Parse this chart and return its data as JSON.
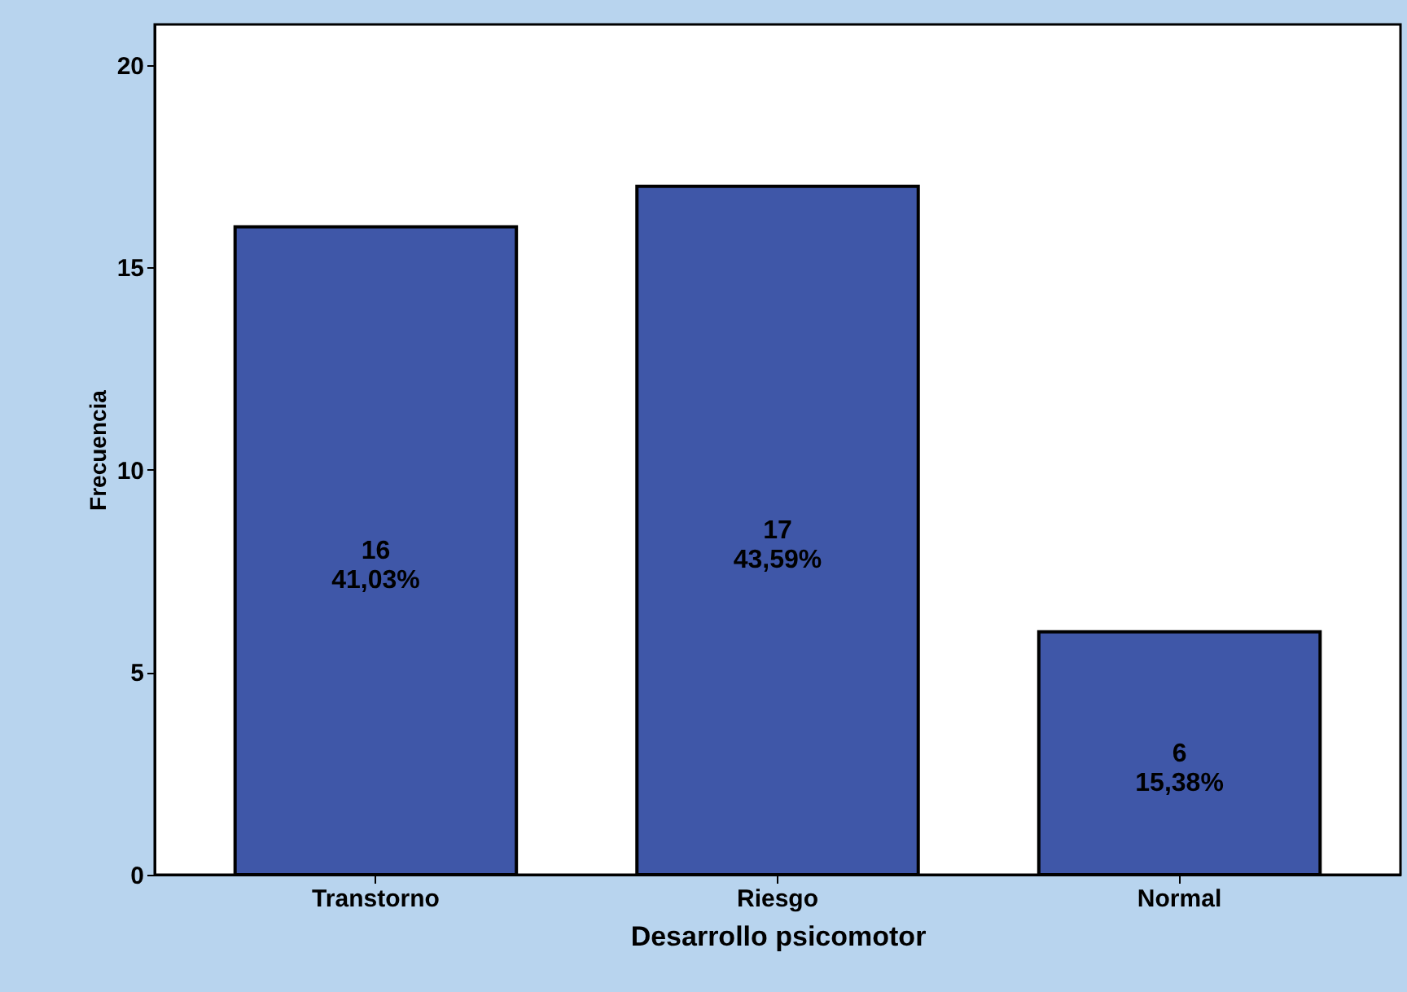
{
  "chart_data": {
    "type": "bar",
    "xlabel": "Desarrollo psicomotor",
    "ylabel": "Frecuencia",
    "categories": [
      "Transtorno",
      "Riesgo",
      "Normal"
    ],
    "values": [
      16,
      17,
      6
    ],
    "color": "#3f57a8",
    "value_labels": [
      "16\n41,03%",
      "17\n43,59%",
      "6\n15,38%"
    ],
    "ylim": [
      0,
      21
    ],
    "yticks": [
      0,
      5,
      10,
      15,
      20
    ],
    "grid": false
  }
}
